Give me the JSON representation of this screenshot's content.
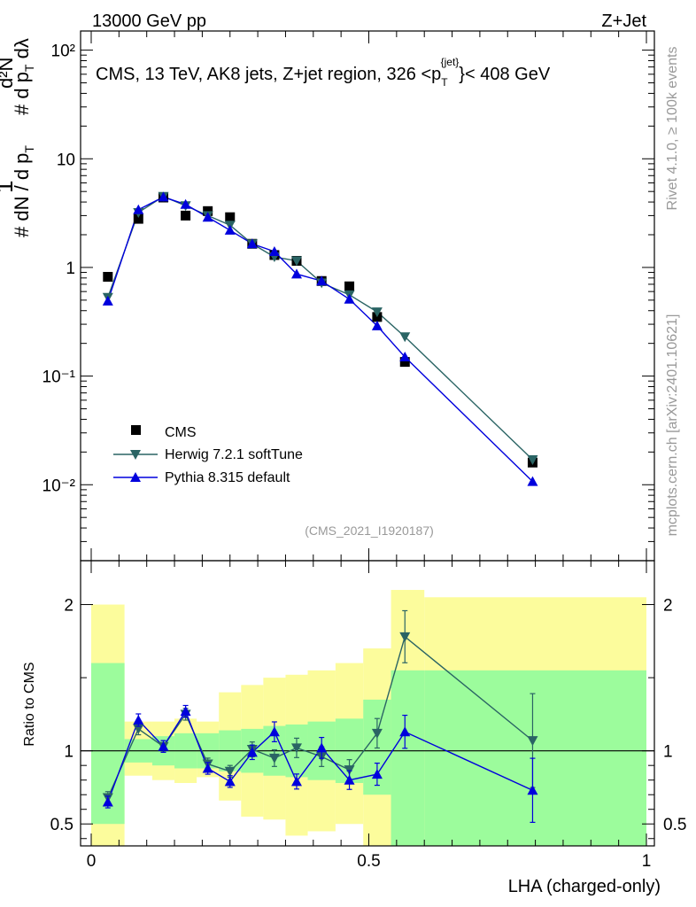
{
  "header": {
    "left": "13000 GeV pp",
    "right": "Z+Jet"
  },
  "side_labels": {
    "rivet": "Rivet 4.1.0, ≥ 100k events",
    "mcplots": "mcplots.cern.ch [arXiv:2401.10621]"
  },
  "plot_title_parts": {
    "main": "CMS, 13 TeV, AK8 jets, Z+jet region, 326 <p",
    "sub": "T",
    "sup": "{jet}",
    "tail": "}< 408 GeV"
  },
  "analysis_tag": "(CMS_2021_I1920187)",
  "ylabel_top": "# 1/dN/dp_T # d²N/dp_T dλ",
  "ylabel_bottom": "Ratio to CMS",
  "colors": {
    "cms": "#000000",
    "herwig": "#2a6464",
    "pythia": "#0000dd",
    "band_inner": "#9cfc9c",
    "band_outer": "#fcfc9c"
  },
  "chart_data": [
    {
      "type": "scatter",
      "scale": "log",
      "xlim": [
        0,
        1
      ],
      "ylim": [
        0.002,
        150
      ],
      "ytick_labels": [
        "10⁻²",
        "10⁻¹",
        "1",
        "10",
        "10²"
      ],
      "legend_position": "bottom-left",
      "series": [
        {
          "name": "CMS",
          "x": [
            0.03,
            0.085,
            0.13,
            0.17,
            0.21,
            0.25,
            0.29,
            0.33,
            0.37,
            0.415,
            0.465,
            0.515,
            0.565,
            0.795
          ],
          "y": [
            0.82,
            2.8,
            4.4,
            3.0,
            3.3,
            2.9,
            1.65,
            1.3,
            1.15,
            0.75,
            0.67,
            0.35,
            0.135,
            0.016
          ]
        },
        {
          "name": "Herwig 7.2.1 softTune",
          "x": [
            0.03,
            0.085,
            0.13,
            0.17,
            0.21,
            0.25,
            0.29,
            0.33,
            0.37,
            0.415,
            0.465,
            0.515,
            0.565,
            0.795
          ],
          "y": [
            0.53,
            3.2,
            4.5,
            3.7,
            3.0,
            2.45,
            1.65,
            1.25,
            1.15,
            0.72,
            0.56,
            0.39,
            0.23,
            0.017
          ]
        },
        {
          "name": "Pythia 8.315 default",
          "x": [
            0.03,
            0.085,
            0.13,
            0.17,
            0.21,
            0.25,
            0.29,
            0.33,
            0.37,
            0.415,
            0.465,
            0.515,
            0.565,
            0.795
          ],
          "y": [
            0.49,
            3.4,
            4.45,
            3.8,
            2.9,
            2.2,
            1.65,
            1.4,
            0.87,
            0.75,
            0.51,
            0.29,
            0.15,
            0.0107
          ]
        }
      ]
    },
    {
      "type": "line",
      "ylabel": "Ratio to CMS",
      "xlabel": "LHA (charged-only)",
      "xlim": [
        0,
        1
      ],
      "ylim": [
        0.35,
        2.3
      ],
      "xtick_labels": [
        "0",
        "0.5",
        "1"
      ],
      "ytick_labels": [
        "0.5",
        "1",
        "2"
      ],
      "series": [
        {
          "name": "Herwig 7.2.1 softTune",
          "x": [
            0.03,
            0.085,
            0.13,
            0.17,
            0.21,
            0.25,
            0.29,
            0.33,
            0.37,
            0.415,
            0.465,
            0.515,
            0.565,
            0.795
          ],
          "y": [
            0.68,
            1.15,
            1.03,
            1.25,
            0.91,
            0.86,
            1.01,
            0.95,
            1.02,
            0.96,
            0.87,
            1.12,
            1.78,
            1.07
          ]
        },
        {
          "name": "Pythia 8.315 default",
          "x": [
            0.03,
            0.085,
            0.13,
            0.17,
            0.21,
            0.25,
            0.29,
            0.33,
            0.37,
            0.415,
            0.465,
            0.515,
            0.565,
            0.795
          ],
          "y": [
            0.65,
            1.21,
            1.03,
            1.27,
            0.88,
            0.79,
            0.99,
            1.13,
            0.79,
            1.02,
            0.8,
            0.84,
            1.13,
            0.73
          ]
        }
      ],
      "uncertainty_bands": {
        "x_edges": [
          0.0,
          0.06,
          0.11,
          0.15,
          0.19,
          0.23,
          0.27,
          0.31,
          0.35,
          0.39,
          0.44,
          0.49,
          0.54,
          0.6,
          1.0
        ],
        "inner": [
          [
            0.5,
            1.6
          ],
          [
            0.92,
            1.08
          ],
          [
            0.9,
            1.1
          ],
          [
            0.88,
            1.12
          ],
          [
            0.88,
            1.12
          ],
          [
            0.86,
            1.14
          ],
          [
            0.85,
            1.15
          ],
          [
            0.83,
            1.17
          ],
          [
            0.82,
            1.18
          ],
          [
            0.8,
            1.2
          ],
          [
            0.78,
            1.22
          ],
          [
            0.7,
            1.35
          ],
          [
            0.35,
            1.55
          ],
          [
            0.35,
            1.55
          ]
        ],
        "outer": [
          [
            0.35,
            2.0
          ],
          [
            0.83,
            1.2
          ],
          [
            0.8,
            1.2
          ],
          [
            0.78,
            1.22
          ],
          [
            0.82,
            1.2
          ],
          [
            0.66,
            1.4
          ],
          [
            0.55,
            1.45
          ],
          [
            0.53,
            1.5
          ],
          [
            0.42,
            1.52
          ],
          [
            0.45,
            1.55
          ],
          [
            0.5,
            1.6
          ],
          [
            0.35,
            1.7
          ],
          [
            0.35,
            2.1
          ],
          [
            0.42,
            2.05
          ]
        ]
      }
    }
  ]
}
